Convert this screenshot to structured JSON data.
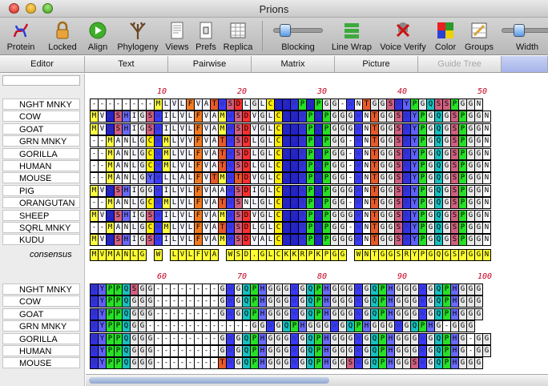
{
  "window": {
    "title": "Prions"
  },
  "toolbar": {
    "protein": "Protein",
    "locked": "Locked",
    "align": "Align",
    "phylogeny": "Phylogeny",
    "views": "Views",
    "prefs": "Prefs",
    "replica": "Replica",
    "blocking": "Blocking",
    "linewrap": "Line Wrap",
    "voiceverify": "Voice Verify",
    "color": "Color",
    "groups": "Groups",
    "width": "Width",
    "blocking_level": 0.15,
    "width_level": 0.25
  },
  "tabs": {
    "editor": "Editor",
    "text": "Text",
    "pairwise": "Pairwise",
    "matrix": "Matrix",
    "picture": "Picture",
    "guidetree": "Guide Tree"
  },
  "block1": {
    "names": [
      "NGHT MNKY",
      "COW",
      "GOAT",
      "GRN MNKY",
      "GORILLA",
      "HUMAN",
      "MOUSE",
      "PIG",
      "ORANGUTAN",
      "SHEEP",
      "SQRL MNKY",
      "KUDU"
    ],
    "consensus_label": "consensus",
    "ticks": [
      "10",
      "20",
      "30",
      "40",
      "50"
    ],
    "seqs": [
      "--------MLVLFVATWSDLGLCKKRPKPGG-WNTGGSRYPGQSSPGGN",
      "MVKSHIGSWILVLFVAMWSDVGLCKKRPKPGGGWNTGGSRYPGQGSPGGN",
      "MVKSHIGSWILVLFVAMWSDVGLCKKRPKPGGGWNTGGSRYPGQGSPGGN",
      "--MANLGCWMLVVFVATWSDLGLCKKRPKPGG-WNTGGSRYPGQGSPGGN",
      "--MANLGCWMLVLFVATWSDLGLCKKRPKPGG-WNTGGSRYPGQGSPGGN",
      "--MANLGCWMLVLFVATWSDLGLCKKRPKPGG-WNTGGSRYPGQGSPGGN",
      "--MANLGYWLLALFVTMWTDVGLCKKRPKPGG-WNTGGSRYPGQGSPGGN",
      "MVKSHIGGWILVLFVAAWSDIGLCKKRPKPGGGWNTGGSRYPGQGSPGGN",
      "--MANLGCWMLVLFVATWSNLGLCKKRPKPGG-WNTGGSRYPGQGSPGGN",
      "MVKSHIGSWILVLFVAMWSDVGLCKKRPKPGGGWNTGGSRYPGQGSPGGN",
      "--MANLGCWMLVLFVATWSDLGLCKKRPKPGG-WNTGGSRYPGQGSPGGN",
      "MVKSHIGSWILVLFVAMWSDVALCKKRPKPGGGWNTGGSRYPGQGSPGGN"
    ],
    "consensus": "MVMANLG W LVLFVA WSD.GLCKKRPKPGG WNTGGSRYPGQGSPGGN"
  },
  "block2": {
    "names": [
      "NGHT MNKY",
      "COW",
      "GOAT",
      "GRN MNKY",
      "GORILLA",
      "HUMAN",
      "MOUSE"
    ],
    "ticks": [
      "60",
      "70",
      "80",
      "90",
      "100"
    ],
    "seqs": [
      "RYPPQSGG--------GWGQPHGGGWGQPHGGGWGQPHGGGWGQPHGGG",
      "RYPPQGGG--------GWGQPHGGGWGQPHGGGWGQPHGGGWGQPHGGG",
      "RYPPQGGG--------GWGQPHGGGWGQPHGGGWGQPHGGGWGQPHGGG",
      "RYPPQGG-------------GGWGQPHGGGWGQPHGGGWGQPHG-GGG",
      "RYPPQGGG--------GWGQPHGGGWGQPHGGGWGQPHGGGWGQPHG-GG",
      "RYPPQGGG--------GWGQPHGGGWGQPHGGGWGQPHGGGWGQPHG-GG",
      "RYPPQGGG--------TWGQPHGGGWGQPHGGSWGQPHGGSWGQPHGGG"
    ]
  },
  "residue_colors": {
    "A": "#f4f4ff",
    "I": "#f4f4ff",
    "L": "#f4f4ff",
    "M": "#ffff44",
    "V": "#f4f4ff",
    "F": "#f27a20",
    "W": "#3a3aff",
    "Y": "#6060ff",
    "C": "#ffee00",
    "G": "#e8e8e8",
    "P": "#27e027",
    "S": "#d06080",
    "T": "#e75a2a",
    "N": "#ffffff",
    "Q": "#18c0c0",
    "D": "#ff3030",
    "E": "#ff3030",
    "K": "#2222cc",
    "R": "#3232e0",
    "H": "#6a6aff"
  }
}
